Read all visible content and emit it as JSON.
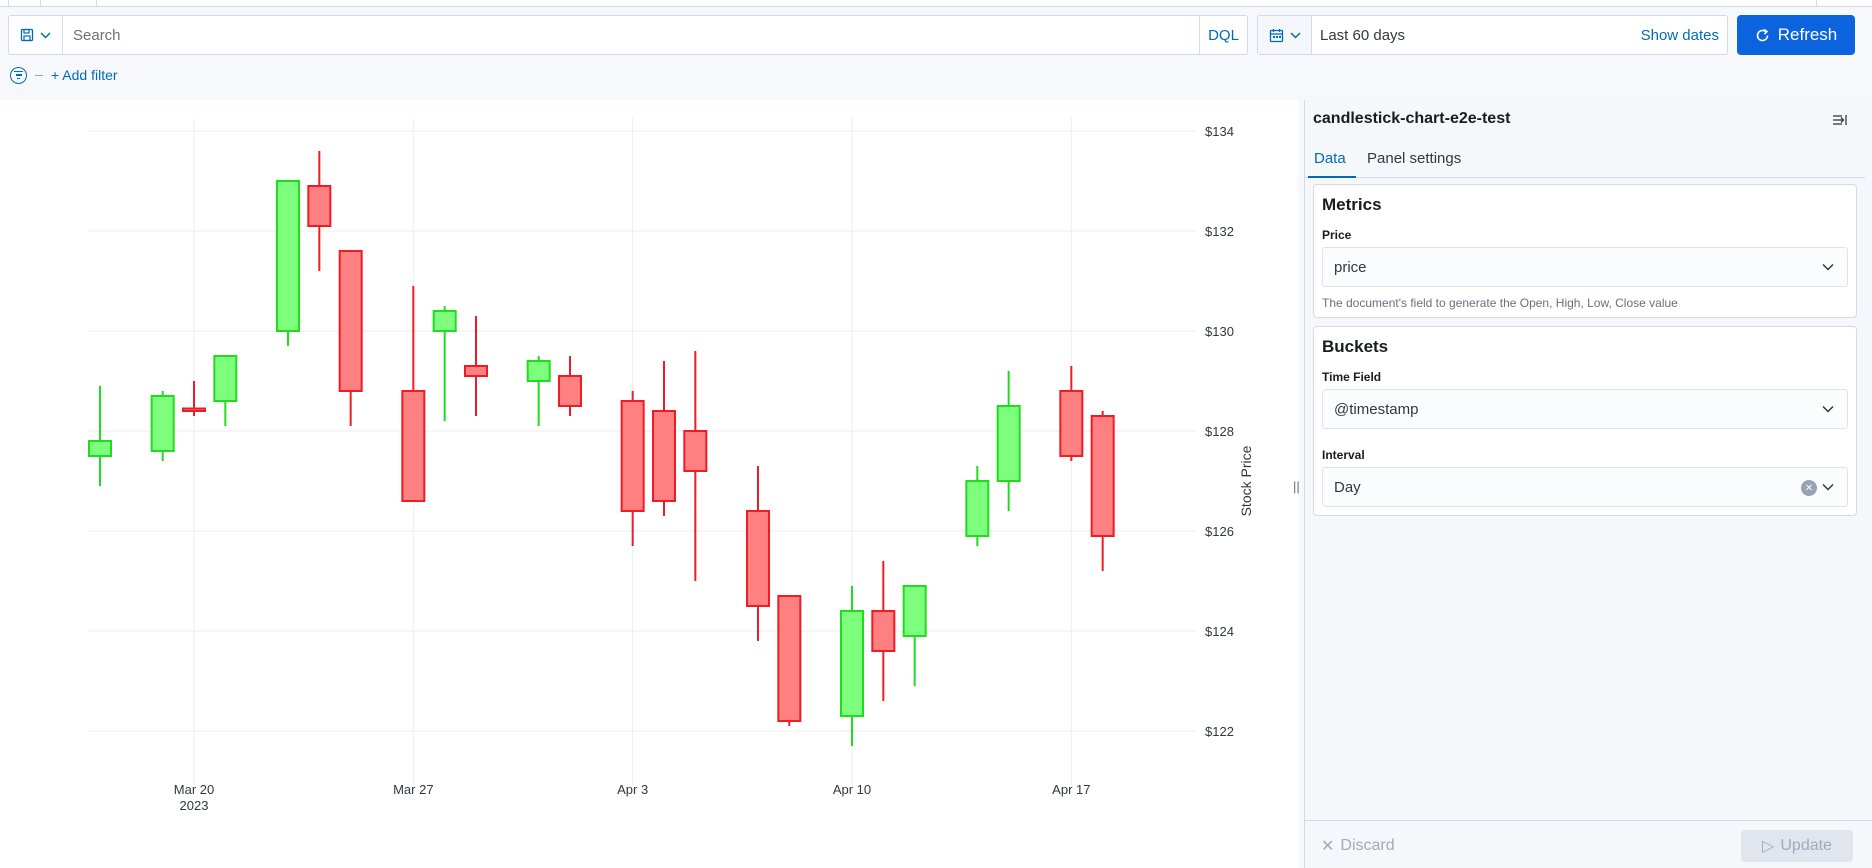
{
  "query_bar": {
    "search_placeholder": "Search",
    "language": "DQL",
    "save_icon": "save-icon",
    "chevron_icon": "chevron-down-icon"
  },
  "date_picker": {
    "range_label": "Last 60 days",
    "show_dates_label": "Show dates",
    "calendar_icon": "calendar-icon"
  },
  "refresh_button": {
    "label": "Refresh",
    "icon": "refresh-icon"
  },
  "filters": {
    "add_filter_label": "+ Add filter",
    "icon": "filter-icon"
  },
  "colors": {
    "accent": "#006bb8",
    "primary_button": "#0b64dd",
    "bullish_fill": "#7dff7d",
    "bullish_stroke": "#1fdc1f",
    "bearish_fill": "#ff8080",
    "bearish_stroke": "#ee1c24"
  },
  "panel": {
    "title": "candlestick-chart-e2e-test",
    "tabs": [
      {
        "label": "Data",
        "active": true
      },
      {
        "label": "Panel settings",
        "active": false
      }
    ],
    "metrics": {
      "title": "Metrics",
      "price_label": "Price",
      "price_value": "price",
      "price_help": "The document's field to generate the Open, High, Low, Close value"
    },
    "buckets": {
      "title": "Buckets",
      "time_field_label": "Time Field",
      "time_field_value": "@timestamp",
      "interval_label": "Interval",
      "interval_value": "Day"
    },
    "footer": {
      "discard_label": "Discard",
      "update_label": "Update"
    }
  },
  "chart_data": {
    "type": "candlestick",
    "ylabel": "Stock Price",
    "y_axis_position": "right",
    "ylim": [
      121.2,
      134.2
    ],
    "y_ticks": [
      122,
      124,
      126,
      128,
      130,
      132,
      134
    ],
    "y_tick_labels": [
      "$122",
      "$124",
      "$126",
      "$128",
      "$130",
      "$132",
      "$134"
    ],
    "x_ticks": [
      {
        "date": "2023-03-20",
        "label": "Mar 20",
        "sublabel": "2023"
      },
      {
        "date": "2023-03-27",
        "label": "Mar 27",
        "sublabel": ""
      },
      {
        "date": "2023-04-03",
        "label": "Apr 3",
        "sublabel": ""
      },
      {
        "date": "2023-04-10",
        "label": "Apr 10",
        "sublabel": ""
      },
      {
        "date": "2023-04-17",
        "label": "Apr 17",
        "sublabel": ""
      }
    ],
    "xlim": [
      "2023-03-17",
      "2023-04-19"
    ],
    "grid": true,
    "candles": [
      {
        "date": "2023-03-17",
        "open": 127.5,
        "high": 128.9,
        "low": 126.9,
        "close": 127.8
      },
      {
        "date": "2023-03-19",
        "open": 127.6,
        "high": 128.8,
        "low": 127.4,
        "close": 128.7
      },
      {
        "date": "2023-03-20",
        "open": 128.45,
        "high": 129.0,
        "low": 128.3,
        "close": 128.4
      },
      {
        "date": "2023-03-21",
        "open": 128.6,
        "high": 129.5,
        "low": 128.1,
        "close": 129.5
      },
      {
        "date": "2023-03-23",
        "open": 130.0,
        "high": 133.0,
        "low": 129.7,
        "close": 133.0
      },
      {
        "date": "2023-03-24",
        "open": 132.9,
        "high": 133.6,
        "low": 131.2,
        "close": 132.1
      },
      {
        "date": "2023-03-25",
        "open": 131.6,
        "high": 131.6,
        "low": 128.1,
        "close": 128.8
      },
      {
        "date": "2023-03-27",
        "open": 128.8,
        "high": 130.9,
        "low": 126.6,
        "close": 126.6
      },
      {
        "date": "2023-03-28",
        "open": 130.0,
        "high": 130.5,
        "low": 128.2,
        "close": 130.4
      },
      {
        "date": "2023-03-29",
        "open": 129.3,
        "high": 130.3,
        "low": 128.3,
        "close": 129.1
      },
      {
        "date": "2023-03-31",
        "open": 129.0,
        "high": 129.5,
        "low": 128.1,
        "close": 129.4
      },
      {
        "date": "2023-04-01",
        "open": 129.1,
        "high": 129.5,
        "low": 128.3,
        "close": 128.5
      },
      {
        "date": "2023-04-03",
        "open": 128.6,
        "high": 128.8,
        "low": 125.7,
        "close": 126.4
      },
      {
        "date": "2023-04-04",
        "open": 128.4,
        "high": 129.4,
        "low": 126.3,
        "close": 126.6
      },
      {
        "date": "2023-04-05",
        "open": 128.0,
        "high": 129.6,
        "low": 125.0,
        "close": 127.2
      },
      {
        "date": "2023-04-07",
        "open": 126.4,
        "high": 127.3,
        "low": 123.8,
        "close": 124.5
      },
      {
        "date": "2023-04-08",
        "open": 124.7,
        "high": 124.7,
        "low": 122.1,
        "close": 122.2
      },
      {
        "date": "2023-04-10",
        "open": 122.3,
        "high": 124.9,
        "low": 121.7,
        "close": 124.4
      },
      {
        "date": "2023-04-11",
        "open": 124.4,
        "high": 125.4,
        "low": 122.6,
        "close": 123.6
      },
      {
        "date": "2023-04-12",
        "open": 123.9,
        "high": 124.9,
        "low": 122.9,
        "close": 124.9
      },
      {
        "date": "2023-04-14",
        "open": 125.9,
        "high": 127.3,
        "low": 125.7,
        "close": 127.0
      },
      {
        "date": "2023-04-15",
        "open": 127.0,
        "high": 129.2,
        "low": 126.4,
        "close": 128.5
      },
      {
        "date": "2023-04-17",
        "open": 128.8,
        "high": 129.3,
        "low": 127.4,
        "close": 127.5
      },
      {
        "date": "2023-04-18",
        "open": 128.3,
        "high": 128.4,
        "low": 125.2,
        "close": 125.9
      }
    ]
  }
}
